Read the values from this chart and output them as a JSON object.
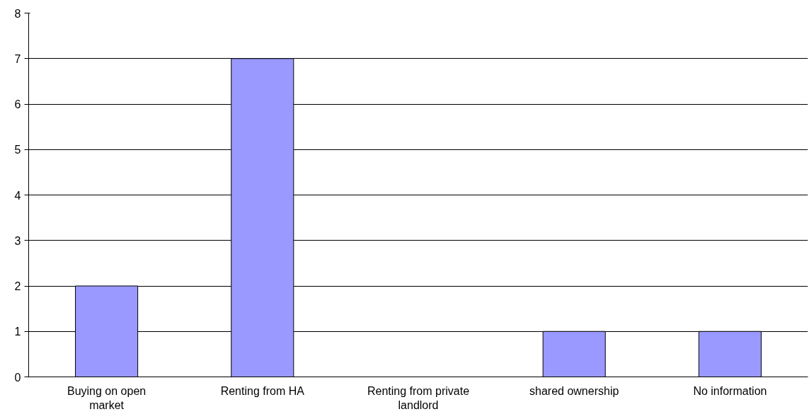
{
  "chart_data": {
    "type": "bar",
    "categories": [
      "Buying on open market",
      "Renting from HA",
      "Renting from private landlord",
      "shared ownership",
      "No information"
    ],
    "values": [
      2,
      7,
      0,
      1,
      1
    ],
    "color": "#9999ff",
    "ylim": [
      0,
      8
    ],
    "yticks": [
      0,
      1,
      2,
      3,
      4,
      5,
      6,
      7,
      8
    ],
    "grid": "y"
  }
}
